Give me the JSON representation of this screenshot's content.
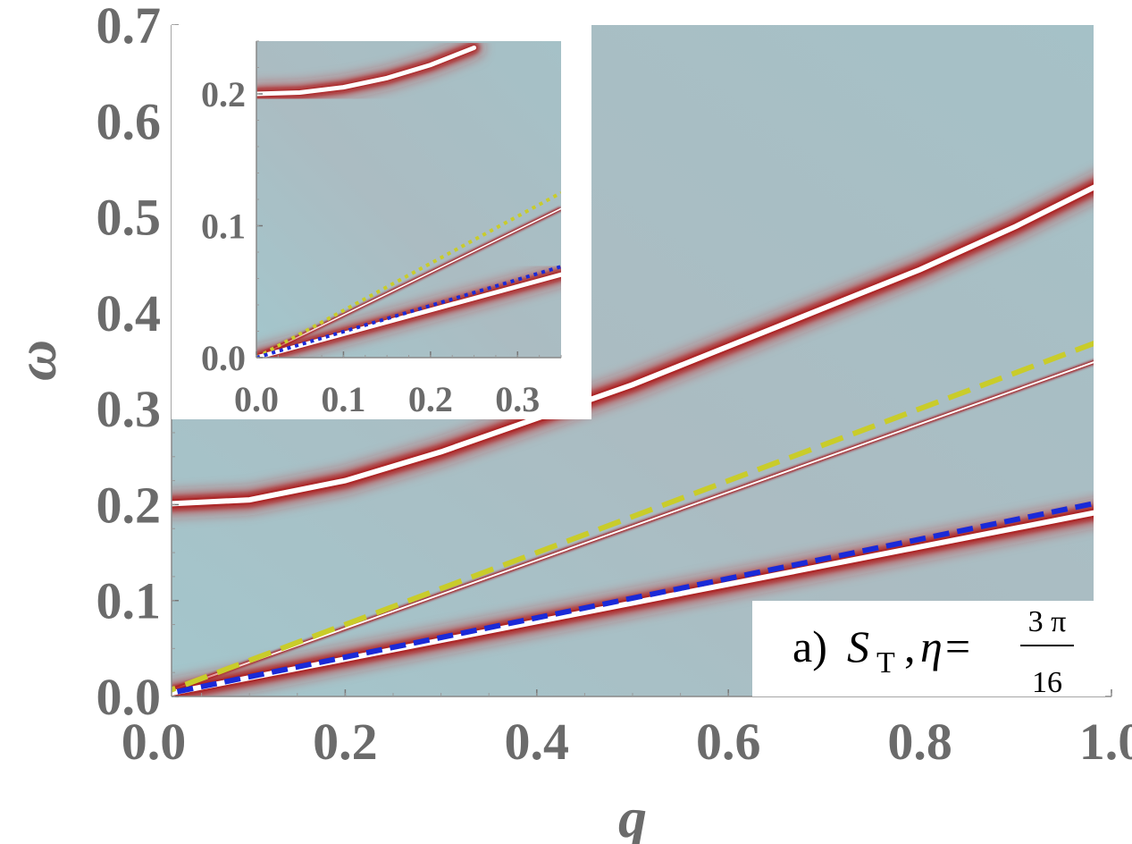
{
  "chart_data": [
    {
      "type": "heatmap",
      "panel": "main",
      "xlabel": "q",
      "ylabel": "ω",
      "xlim": [
        0.0,
        1.0
      ],
      "ylim": [
        0.0,
        0.7
      ],
      "xticks": [
        "0.0",
        "0.2",
        "0.4",
        "0.6",
        "0.8",
        "1.0"
      ],
      "yticks": [
        "0.0",
        "0.1",
        "0.2",
        "0.3",
        "0.4",
        "0.5",
        "0.6",
        "0.7"
      ],
      "annotation": {
        "panel_tag": "a)",
        "symbol": "S",
        "subscript": "T",
        "param": "η=",
        "numerator": "3 π",
        "denominator": "16"
      },
      "series": [
        {
          "name": "upper branch",
          "style": "bright-line",
          "x": [
            0.0,
            0.1,
            0.2,
            0.3,
            0.4,
            0.5,
            0.6,
            0.7,
            0.8,
            0.9,
            1.0
          ],
          "y": [
            0.2,
            0.205,
            0.225,
            0.255,
            0.29,
            0.325,
            0.365,
            0.405,
            0.445,
            0.49,
            0.54
          ]
        },
        {
          "name": "middle branch",
          "style": "thin-line",
          "x": [
            0.0,
            1.0
          ],
          "y": [
            0.0,
            0.355
          ]
        },
        {
          "name": "lower branch",
          "style": "bright-line",
          "x": [
            0.0,
            1.0
          ],
          "y": [
            0.0,
            0.195
          ]
        },
        {
          "name": "yellow guide",
          "style": "yellow-dashed",
          "x": [
            0.0,
            1.0
          ],
          "y": [
            0.0,
            0.375
          ]
        },
        {
          "name": "blue guide",
          "style": "blue-dashed",
          "x": [
            0.0,
            1.0
          ],
          "y": [
            0.0,
            0.205
          ]
        }
      ]
    },
    {
      "type": "heatmap",
      "panel": "inset",
      "xlim": [
        0.0,
        0.35
      ],
      "ylim": [
        0.0,
        0.24
      ],
      "xticks": [
        "0.0",
        "0.1",
        "0.2",
        "0.3"
      ],
      "yticks": [
        "0.0",
        "0.1",
        "0.2"
      ],
      "series": [
        {
          "name": "upper branch",
          "style": "bright-line",
          "x": [
            0.0,
            0.05,
            0.1,
            0.15,
            0.2,
            0.25
          ],
          "y": [
            0.2,
            0.201,
            0.205,
            0.212,
            0.222,
            0.235
          ]
        },
        {
          "name": "middle branch",
          "style": "thin-line",
          "x": [
            0.0,
            0.35
          ],
          "y": [
            0.0,
            0.113
          ]
        },
        {
          "name": "lower branch",
          "style": "bright-line",
          "x": [
            0.0,
            0.35
          ],
          "y": [
            0.0,
            0.063
          ]
        },
        {
          "name": "yellow guide",
          "style": "yellow-dotted",
          "x": [
            0.0,
            0.35
          ],
          "y": [
            0.0,
            0.125
          ]
        },
        {
          "name": "blue guide",
          "style": "blue-dotted",
          "x": [
            0.0,
            0.35
          ],
          "y": [
            0.0,
            0.069
          ]
        }
      ]
    }
  ],
  "colors": {
    "background": "#a9bec4",
    "axis": "#6b6b6b",
    "glow": "#c41f1f",
    "core": "#ffffff",
    "yellow": "#c9cc2a",
    "blue": "#1a2ad8"
  }
}
